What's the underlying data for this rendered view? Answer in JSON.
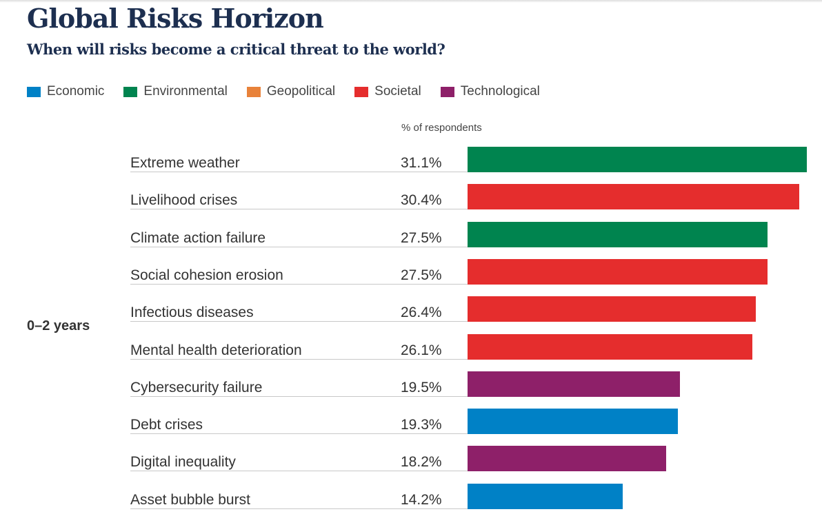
{
  "header": {
    "title": "Global Risks Horizon",
    "subtitle": "When will risks become a critical threat to the world?"
  },
  "colors": {
    "Economic": "#0081c6",
    "Environmental": "#00844f",
    "Geopolitical": "#e8823a",
    "Societal": "#e52d2d",
    "Technological": "#8e2069"
  },
  "chart_data": {
    "type": "bar",
    "orientation": "horizontal",
    "title": "Global Risks Horizon",
    "subtitle": "When will risks become a critical threat to the world?",
    "unit_label": "% of respondents",
    "period": "0–2 years",
    "legend": [
      "Economic",
      "Environmental",
      "Geopolitical",
      "Societal",
      "Technological"
    ],
    "legend_placement": "top-left",
    "categories": [
      "Extreme weather",
      "Livelihood crises",
      "Climate action failure",
      "Social cohesion erosion",
      "Infectious diseases",
      "Mental health deterioration",
      "Cybersecurity failure",
      "Debt crises",
      "Digital inequality",
      "Asset bubble burst"
    ],
    "values": [
      31.1,
      30.4,
      27.5,
      27.5,
      26.4,
      26.1,
      19.5,
      19.3,
      18.2,
      14.2
    ],
    "value_labels": [
      "31.1%",
      "30.4%",
      "27.5%",
      "27.5%",
      "26.4%",
      "26.1%",
      "19.5%",
      "19.3%",
      "18.2%",
      "14.2%"
    ],
    "groups": [
      "Environmental",
      "Societal",
      "Environmental",
      "Societal",
      "Societal",
      "Societal",
      "Technological",
      "Economic",
      "Technological",
      "Economic"
    ],
    "xlim": [
      0,
      31.1
    ]
  }
}
